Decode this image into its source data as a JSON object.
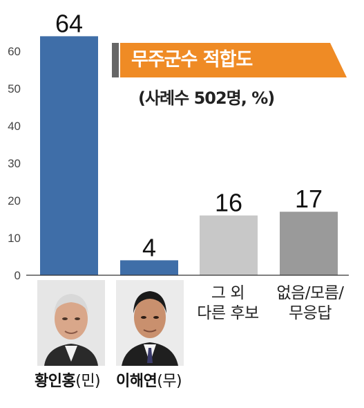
{
  "chart_data": {
    "type": "bar",
    "title": "무주군수 적합도",
    "subtitle": "(사례수 502명, %)",
    "categories": [
      "황인홍(민)",
      "이해연(무)",
      "그 외 다른 후보",
      "없음/모름/무응답"
    ],
    "values": [
      64,
      4,
      16,
      17
    ],
    "ylim": [
      0,
      70
    ],
    "yticks": [
      0,
      10,
      20,
      30,
      40,
      50,
      60
    ],
    "bar_colors": [
      "#3f6ea8",
      "#3f6ea8",
      "#c8c8c8",
      "#9a9a9a"
    ],
    "banner_color": "#ef8b25",
    "banner_accent_color": "#666666",
    "grid": false
  },
  "candidates": [
    {
      "name": "황인홍",
      "party": "(민)",
      "photo": "portrait-photo"
    },
    {
      "name": "이해연",
      "party": "(무)",
      "photo": "portrait-photo"
    }
  ],
  "other_labels": [
    "그 외\n다른 후보",
    "없음/모름/\n무응답"
  ]
}
